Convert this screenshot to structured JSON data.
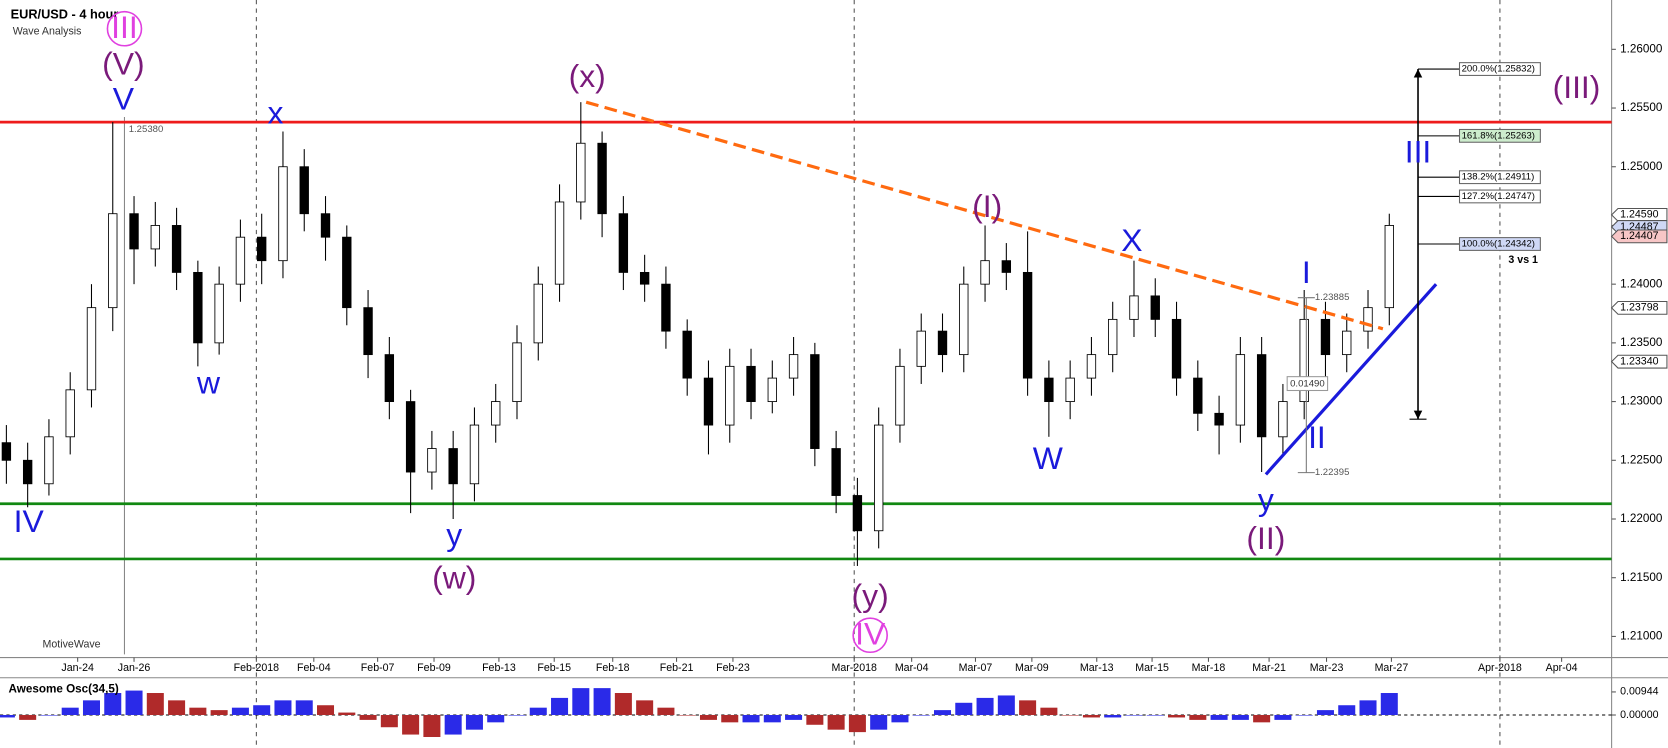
{
  "chart_data": {
    "type": "candlestick",
    "title": "EUR/USD - 4 hour",
    "subtitle": "Wave Analysis",
    "watermark": "MotiveWave",
    "x": [
      0,
      1,
      2,
      3,
      4,
      5,
      6,
      7,
      8,
      9,
      10,
      11,
      12,
      13,
      14,
      15,
      16,
      17,
      18,
      19,
      20,
      21,
      22,
      23,
      24,
      25,
      26,
      27,
      28,
      29,
      30,
      31,
      32,
      33,
      34,
      35,
      36,
      37,
      38,
      39,
      40,
      41,
      42,
      43,
      44,
      45,
      46,
      47,
      48,
      49,
      50,
      51,
      52,
      53,
      54,
      55,
      56,
      57,
      58,
      59,
      60,
      61,
      62,
      63,
      64,
      65
    ],
    "open": [
      1.2265,
      1.225,
      1.223,
      1.227,
      1.231,
      1.238,
      1.246,
      1.243,
      1.245,
      1.241,
      1.235,
      1.24,
      1.244,
      1.242,
      1.25,
      1.246,
      1.244,
      1.238,
      1.234,
      1.23,
      1.224,
      1.226,
      1.223,
      1.228,
      1.23,
      1.235,
      1.24,
      1.247,
      1.252,
      1.246,
      1.241,
      1.24,
      1.236,
      1.232,
      1.228,
      1.233,
      1.23,
      1.232,
      1.234,
      1.226,
      1.222,
      1.219,
      1.228,
      1.233,
      1.236,
      1.234,
      1.24,
      1.242,
      1.241,
      1.232,
      1.23,
      1.232,
      1.234,
      1.237,
      1.239,
      1.237,
      1.232,
      1.229,
      1.228,
      1.234,
      1.227,
      1.23,
      1.237,
      1.234,
      1.236,
      1.238
    ],
    "high": [
      1.228,
      1.2265,
      1.2285,
      1.2325,
      1.24,
      1.2538,
      1.2475,
      1.247,
      1.2465,
      1.242,
      1.2415,
      1.2455,
      1.246,
      1.253,
      1.2515,
      1.2475,
      1.245,
      1.2395,
      1.2355,
      1.231,
      1.2275,
      1.2275,
      1.2295,
      1.2315,
      1.2365,
      1.2415,
      1.2485,
      1.2555,
      1.253,
      1.2475,
      1.2425,
      1.2415,
      1.237,
      1.2335,
      1.2345,
      1.2345,
      1.2335,
      1.2355,
      1.235,
      1.2275,
      1.2235,
      1.2295,
      1.2345,
      1.2375,
      1.2375,
      1.2415,
      1.245,
      1.2435,
      1.2445,
      1.2335,
      1.2335,
      1.2355,
      1.2385,
      1.242,
      1.2405,
      1.2385,
      1.2335,
      1.2305,
      1.2355,
      1.2355,
      1.2315,
      1.2395,
      1.2385,
      1.2375,
      1.2395,
      1.246
    ],
    "low": [
      1.223,
      1.221,
      1.222,
      1.2255,
      1.2295,
      1.236,
      1.24,
      1.2415,
      1.2395,
      1.233,
      1.234,
      1.2385,
      1.24,
      1.2405,
      1.2445,
      1.242,
      1.2365,
      1.232,
      1.2285,
      1.2205,
      1.2225,
      1.22,
      1.2215,
      1.2265,
      1.2285,
      1.2335,
      1.2385,
      1.2455,
      1.244,
      1.2395,
      1.2385,
      1.2345,
      1.2305,
      1.2255,
      1.2265,
      1.2285,
      1.229,
      1.2305,
      1.2245,
      1.2205,
      1.216,
      1.2175,
      1.2265,
      1.2315,
      1.2325,
      1.2325,
      1.2385,
      1.2395,
      1.2305,
      1.227,
      1.2285,
      1.2305,
      1.2325,
      1.2355,
      1.2355,
      1.2305,
      1.2275,
      1.2255,
      1.2265,
      1.224,
      1.2255,
      1.2285,
      1.232,
      1.2325,
      1.2345,
      1.2365
    ],
    "close": [
      1.225,
      1.223,
      1.227,
      1.231,
      1.238,
      1.246,
      1.243,
      1.245,
      1.241,
      1.235,
      1.24,
      1.244,
      1.242,
      1.25,
      1.246,
      1.244,
      1.238,
      1.234,
      1.23,
      1.224,
      1.226,
      1.223,
      1.228,
      1.23,
      1.235,
      1.24,
      1.247,
      1.252,
      1.246,
      1.241,
      1.24,
      1.236,
      1.232,
      1.228,
      1.233,
      1.23,
      1.232,
      1.234,
      1.226,
      1.222,
      1.219,
      1.228,
      1.233,
      1.236,
      1.234,
      1.24,
      1.242,
      1.241,
      1.232,
      1.23,
      1.232,
      1.234,
      1.237,
      1.239,
      1.237,
      1.232,
      1.229,
      1.228,
      1.234,
      1.227,
      1.23,
      1.237,
      1.234,
      1.236,
      1.238,
      1.245
    ],
    "xlim": [
      -0.3,
      75.45
    ],
    "xticks": [
      {
        "value": 3.35,
        "label": "Jan-24"
      },
      {
        "value": 6,
        "label": "Jan-26"
      },
      {
        "value": 11.75,
        "label": "Feb-2018"
      },
      {
        "value": 14.45,
        "label": "Feb-04"
      },
      {
        "value": 17.45,
        "label": "Feb-07"
      },
      {
        "value": 20.1,
        "label": "Feb-09"
      },
      {
        "value": 23.15,
        "label": "Feb-13"
      },
      {
        "value": 25.75,
        "label": "Feb-15"
      },
      {
        "value": 28.5,
        "label": "Feb-18"
      },
      {
        "value": 31.5,
        "label": "Feb-21"
      },
      {
        "value": 34.15,
        "label": "Feb-23"
      },
      {
        "value": 39.85,
        "label": "Mar-2018"
      },
      {
        "value": 42.55,
        "label": "Mar-04"
      },
      {
        "value": 45.55,
        "label": "Mar-07"
      },
      {
        "value": 48.2,
        "label": "Mar-09"
      },
      {
        "value": 51.25,
        "label": "Mar-13"
      },
      {
        "value": 53.85,
        "label": "Mar-15"
      },
      {
        "value": 56.5,
        "label": "Mar-18"
      },
      {
        "value": 59.35,
        "label": "Mar-21"
      },
      {
        "value": 62.05,
        "label": "Mar-23"
      },
      {
        "value": 65.1,
        "label": "Mar-27"
      },
      {
        "value": 70.2,
        "label": "Apr-2018"
      },
      {
        "value": 73.1,
        "label": "Apr-04"
      }
    ],
    "ylim": [
      1.2082,
      1.2642
    ],
    "yticks": [
      {
        "value": 1.21,
        "label": "1.21000"
      },
      {
        "value": 1.215,
        "label": "1.21500"
      },
      {
        "value": 1.22,
        "label": "1.22000"
      },
      {
        "value": 1.225,
        "label": "1.22500"
      },
      {
        "value": 1.23,
        "label": "1.23000"
      },
      {
        "value": 1.235,
        "label": "1.23500"
      },
      {
        "value": 1.24,
        "label": "1.24000"
      },
      {
        "value": 1.245,
        "label": "1.24500"
      },
      {
        "value": 1.25,
        "label": "1.25000"
      },
      {
        "value": 1.255,
        "label": "1.25500"
      },
      {
        "value": 1.26,
        "label": "1.26000"
      }
    ],
    "grid": false,
    "up_color": "#ffffff",
    "down_color": "#000000",
    "hlines": [
      {
        "value": 1.2538,
        "color": "#ee1c1c"
      },
      {
        "value": 1.2213,
        "color": "#118811"
      },
      {
        "value": 1.2166,
        "color": "#118811"
      }
    ],
    "trendlines": [
      {
        "x": [
          27.25,
          64.7
        ],
        "y": [
          1.2555,
          1.2362
        ],
        "color": "#ff6a10",
        "dashed": true
      },
      {
        "x": [
          59.2,
          67.2
        ],
        "y": [
          1.2238,
          1.24
        ],
        "color": "#1a1adb",
        "dashed": false
      }
    ],
    "fib": [
      {
        "value": 1.25832,
        "label": "200.0%(1.25832)",
        "color": "#ffffff"
      },
      {
        "value": 1.25263,
        "label": "161.8%(1.25263)",
        "color": "#cdeccd"
      },
      {
        "value": 1.24911,
        "label": "138.2%(1.24911)",
        "color": "#ffffff"
      },
      {
        "value": 1.24747,
        "label": "127.2%(1.24747)",
        "color": "#ffffff"
      },
      {
        "value": 1.24342,
        "label": "100.0%(1.24342)",
        "color": "#cfd8f5"
      }
    ],
    "fib_note": "3 vs 1",
    "projection": [
      1.25832,
      1.2285
    ],
    "level_labels": [
      {
        "value": 1.2538,
        "label": "1.25380"
      },
      {
        "value": 1.23885,
        "label": "1.23885"
      },
      {
        "value": 1.22395,
        "label": "1.22395"
      }
    ],
    "measure": {
      "value": 0.0149,
      "label": "0.01490"
    },
    "price_markers": [
      {
        "value": 1.2459,
        "label": "1.24590",
        "color": "#ffffff"
      },
      {
        "value": 1.24487,
        "label": "1.24487",
        "color": "#cfd8f5"
      },
      {
        "value": 1.24407,
        "label": "1.24407",
        "color": "#f7c6c6"
      },
      {
        "value": 1.23798,
        "label": "1.23798",
        "color": "#ffffff"
      },
      {
        "value": 1.2334,
        "label": "1.23340",
        "color": "#ffffff"
      }
    ],
    "annotations": [
      "III",
      "(V)",
      "V",
      "IV",
      "w",
      "x",
      "y",
      "(w)",
      "(x)",
      "(y)",
      "IV",
      "(I)",
      "W",
      "X",
      "I",
      "II",
      "y",
      "(II)",
      "III",
      "(III)"
    ],
    "indicator": {
      "name": "Awesome Osc(34,5)",
      "values": [
        -0.001,
        -0.002,
        0.0,
        0.003,
        0.006,
        0.009,
        0.01,
        0.009,
        0.006,
        0.003,
        0.002,
        0.003,
        0.004,
        0.006,
        0.006,
        0.004,
        0.001,
        -0.002,
        -0.005,
        -0.008,
        -0.009,
        -0.008,
        -0.006,
        -0.003,
        0.0,
        0.003,
        0.007,
        0.011,
        0.011,
        0.009,
        0.006,
        0.003,
        0.0,
        -0.002,
        -0.003,
        -0.003,
        -0.003,
        -0.002,
        -0.004,
        -0.006,
        -0.007,
        -0.006,
        -0.003,
        0.0,
        0.002,
        0.005,
        0.007,
        0.008,
        0.006,
        0.003,
        0.0,
        -0.001,
        -0.001,
        0.0,
        0.0,
        -0.001,
        -0.002,
        -0.002,
        -0.002,
        -0.003,
        -0.002,
        0.0,
        0.002,
        0.004,
        0.006,
        0.009
      ],
      "ylim": [
        -0.0135,
        0.0148
      ],
      "yticks": [
        0.00944,
        {
          "value": 0,
          "label": "0.00000"
        }
      ],
      "up_color": "#2a2ae8",
      "down_color": "#b02a2a"
    }
  }
}
